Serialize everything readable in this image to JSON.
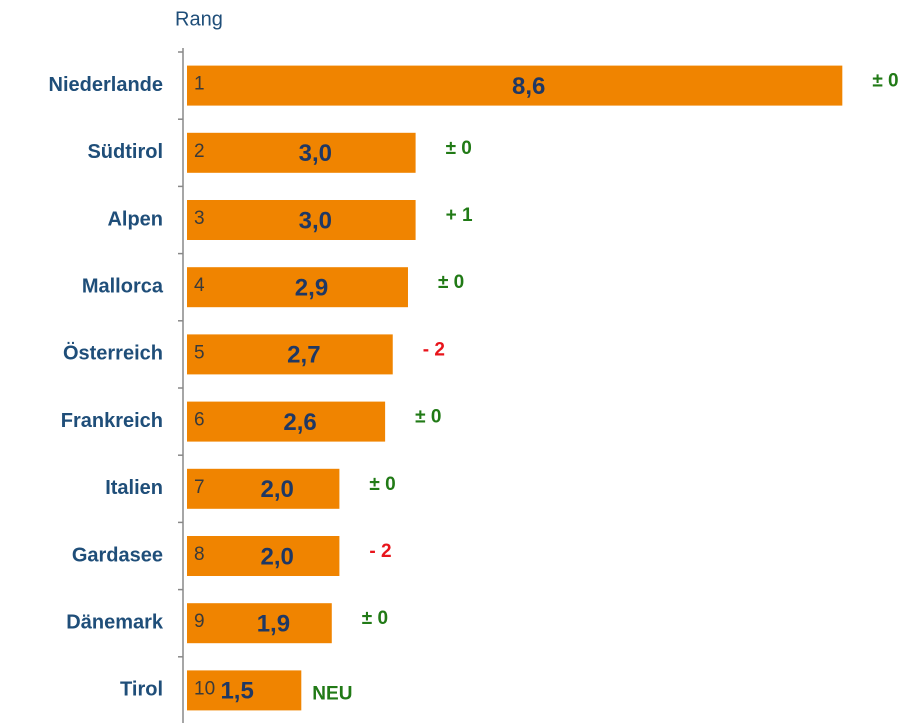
{
  "chart_data": {
    "type": "bar",
    "orientation": "horizontal",
    "axis_label": "Rang",
    "categories": [
      "Niederlande",
      "Südtirol",
      "Alpen",
      "Mallorca",
      "Österreich",
      "Frankreich",
      "Italien",
      "Gardasee",
      "Dänemark",
      "Tirol"
    ],
    "values": [
      8.6,
      3.0,
      3.0,
      2.9,
      2.7,
      2.6,
      2.0,
      2.0,
      1.9,
      1.5
    ],
    "value_labels": [
      "8,6",
      "3,0",
      "3,0",
      "2,9",
      "2,7",
      "2,6",
      "2,0",
      "2,0",
      "1,9",
      "1,5"
    ],
    "ranks": [
      "1",
      "2",
      "3",
      "4",
      "5",
      "6",
      "7",
      "8",
      "9",
      "10"
    ],
    "changes": [
      "± 0",
      "± 0",
      "+ 1",
      "± 0",
      "- 2",
      "± 0",
      "± 0",
      "- 2",
      "± 0",
      "NEU"
    ],
    "change_colors": [
      "#217a16",
      "#217a16",
      "#217a16",
      "#217a16",
      "#e8141b",
      "#217a16",
      "#217a16",
      "#e8141b",
      "#217a16",
      "#217a16"
    ],
    "color": "#f08400"
  }
}
